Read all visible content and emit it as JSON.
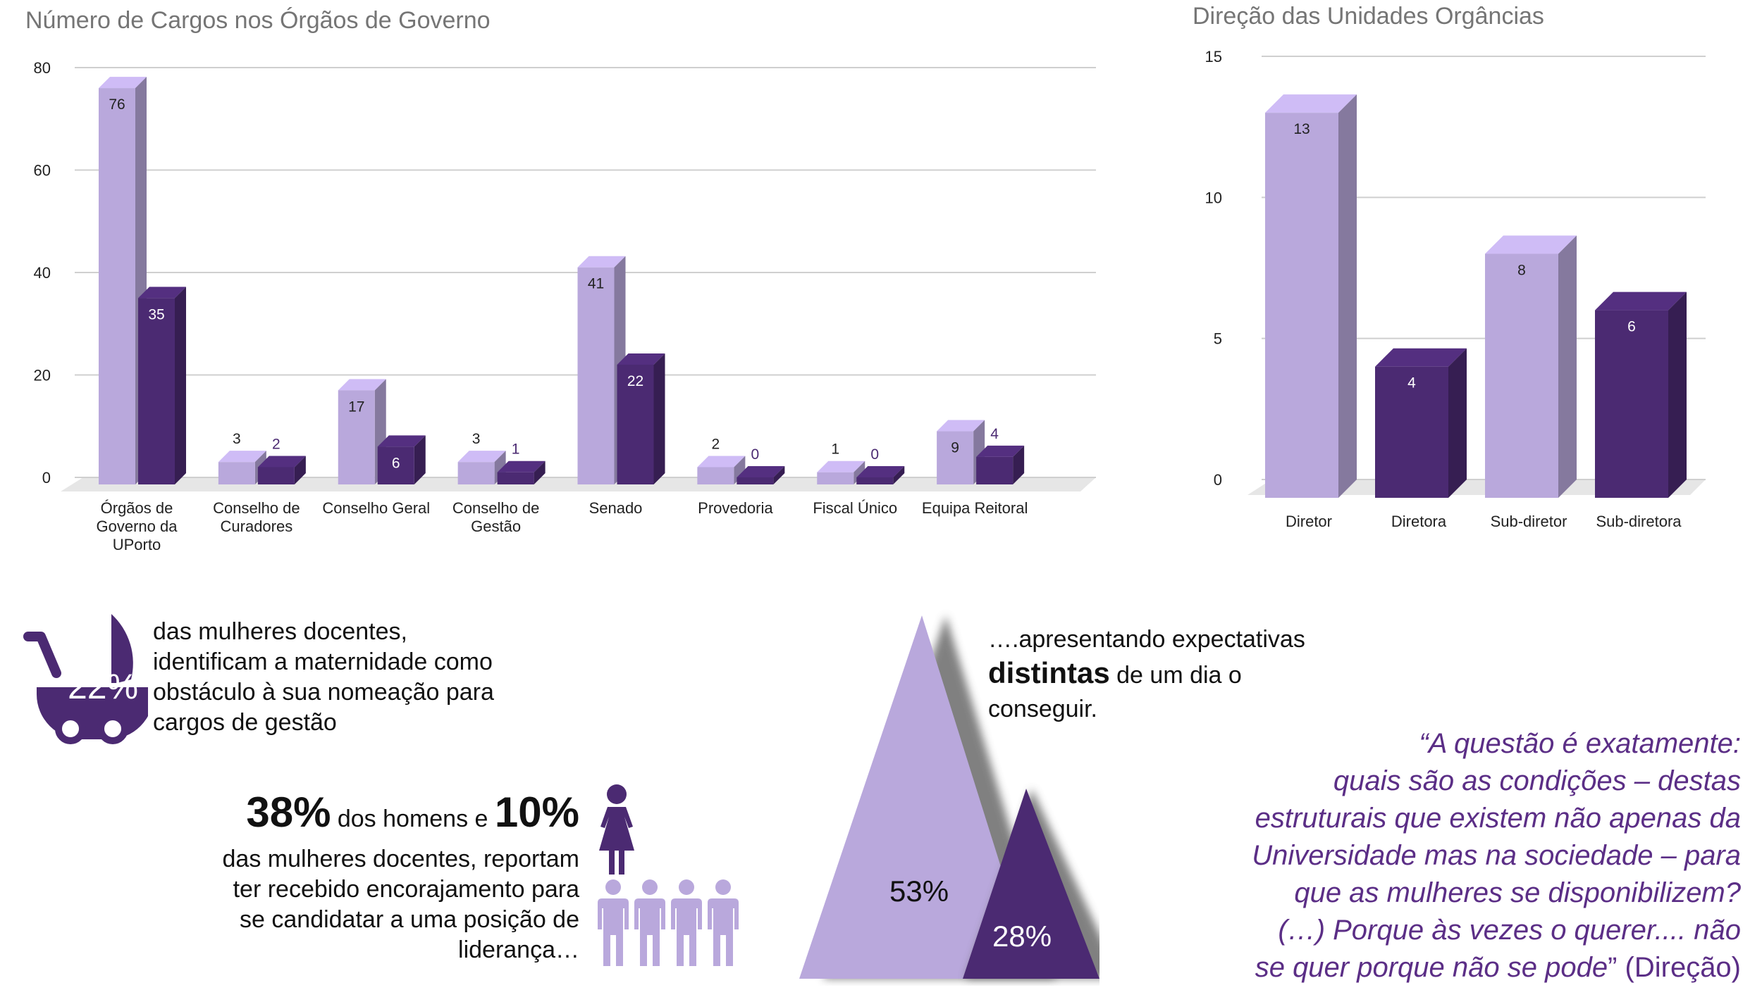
{
  "colors": {
    "light": "#b9a8dc",
    "dark": "#4b2a72",
    "text_purple": "#5b2e86"
  },
  "chart_data": [
    {
      "type": "bar",
      "title": "Número de Cargos nos Órgãos de Governo",
      "categories": [
        "Órgãos de Governo da UPorto",
        "Conselho de Curadores",
        "Conselho Geral",
        "Conselho de Gestão",
        "Senado",
        "Provedoria",
        "Fiscal Único",
        "Equipa Reitoral"
      ],
      "category_lines": [
        [
          "Órgãos de",
          "Governo da",
          "UPorto"
        ],
        [
          "Conselho de",
          "Curadores"
        ],
        [
          "Conselho Geral"
        ],
        [
          "Conselho de",
          "Gestão"
        ],
        [
          "Senado"
        ],
        [
          "Provedoria"
        ],
        [
          "Fiscal Único"
        ],
        [
          "Equipa Reitoral"
        ]
      ],
      "series": [
        {
          "values": [
            76,
            3,
            17,
            3,
            41,
            2,
            1,
            9
          ]
        },
        {
          "values": [
            35,
            2,
            6,
            1,
            22,
            0,
            0,
            4
          ]
        }
      ],
      "ylim": [
        0,
        80
      ],
      "yticks": [
        0,
        20,
        40,
        60,
        80
      ],
      "grid": true
    },
    {
      "type": "bar",
      "title": "Direção das Unidades Orgâncias",
      "categories": [
        "Diretor",
        "Diretora",
        "Sub-diretor",
        "Sub-diretora"
      ],
      "values": [
        13,
        4,
        8,
        6
      ],
      "ylim": [
        0,
        15
      ],
      "yticks": [
        0,
        5,
        10,
        15
      ],
      "grid": true
    }
  ],
  "stat1": {
    "pct": "22%",
    "lines": [
      "das mulheres docentes,",
      "identificam a maternidade como",
      "obstáculo à sua nomeação para",
      "cargos de gestão"
    ]
  },
  "stat2": {
    "pct_men": "38%",
    "mid": " dos homens e ",
    "pct_women": "10%",
    "lines": [
      "das mulheres docentes, reportam",
      "ter recebido encorajamento para",
      "se candidatar a uma posição de",
      "liderança…"
    ]
  },
  "stat3": {
    "line1": "….apresentando expectativas",
    "bold": "distintas",
    "rest": " de um dia o",
    "line3": "conseguir.",
    "big_pct": "53%",
    "small_pct": "28%"
  },
  "quote": {
    "lines": [
      "“A questão é exatamente:",
      "quais são as condições – destas",
      "estruturais que existem não apenas da",
      "Universidade mas na sociedade – para",
      "que as mulheres se disponibilizem?",
      "(…) Porque às vezes o querer.... não"
    ],
    "last": "se quer porque não se pode",
    "tail": "” (Direção)"
  }
}
